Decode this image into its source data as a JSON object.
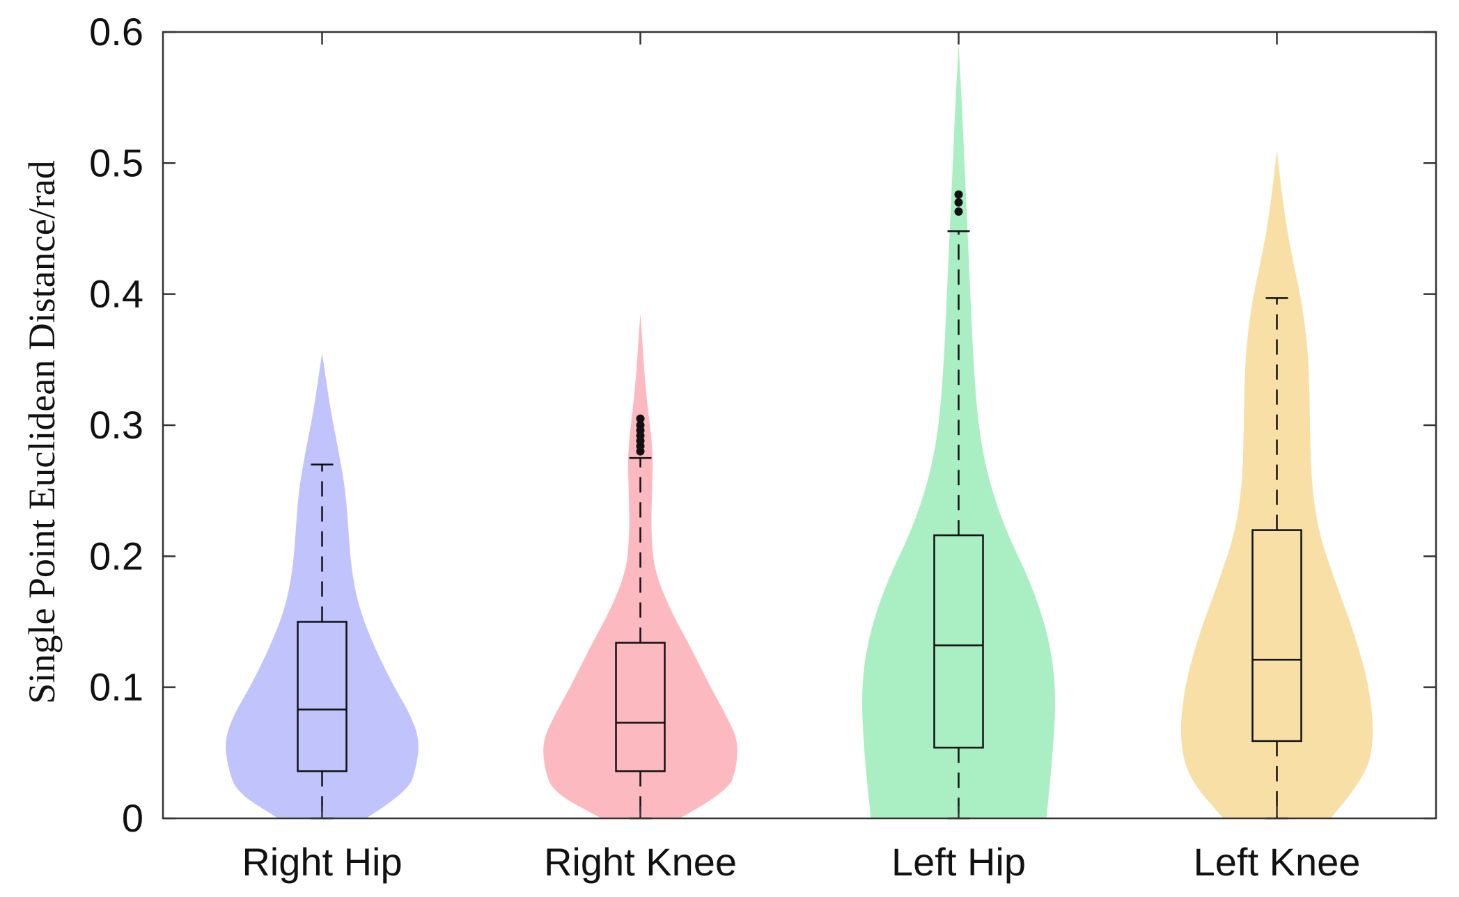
{
  "chart_data": {
    "type": "violin",
    "xlabel": "",
    "ylabel": "Single Point Euclidean Distance/rad",
    "ylim": [
      0,
      0.6
    ],
    "yticks": [
      "0",
      "0.1",
      "0.2",
      "0.3",
      "0.4",
      "0.5",
      "0.6"
    ],
    "grid": false,
    "legend": "none",
    "categories": [
      "Right Hip",
      "Right Knee",
      "Left Hip",
      "Left Knee"
    ],
    "series": [
      {
        "category": "Right Hip",
        "color": "#c0c3fc",
        "box": {
          "whisker_low": 0.0,
          "q1": 0.036,
          "median": 0.083,
          "q3": 0.15,
          "whisker_high": 0.27
        },
        "outliers": [],
        "density_range": [
          0.0,
          0.355
        ],
        "density_profile": [
          [
            0.0,
            0.45
          ],
          [
            0.02,
            0.88
          ],
          [
            0.04,
            0.97
          ],
          [
            0.06,
            1.0
          ],
          [
            0.08,
            0.9
          ],
          [
            0.1,
            0.74
          ],
          [
            0.13,
            0.54
          ],
          [
            0.16,
            0.38
          ],
          [
            0.19,
            0.3
          ],
          [
            0.22,
            0.27
          ],
          [
            0.25,
            0.24
          ],
          [
            0.28,
            0.17
          ],
          [
            0.31,
            0.09
          ],
          [
            0.335,
            0.04
          ],
          [
            0.355,
            0.0
          ]
        ]
      },
      {
        "category": "Right Knee",
        "color": "#fdb9c0",
        "box": {
          "whisker_low": 0.0,
          "q1": 0.036,
          "median": 0.073,
          "q3": 0.134,
          "whisker_high": 0.275
        },
        "outliers": [
          0.28,
          0.284,
          0.288,
          0.292,
          0.296,
          0.3,
          0.305
        ],
        "density_range": [
          0.0,
          0.385
        ],
        "density_profile": [
          [
            0.0,
            0.4
          ],
          [
            0.02,
            0.9
          ],
          [
            0.04,
            0.99
          ],
          [
            0.06,
            1.0
          ],
          [
            0.08,
            0.87
          ],
          [
            0.1,
            0.72
          ],
          [
            0.13,
            0.52
          ],
          [
            0.16,
            0.3
          ],
          [
            0.19,
            0.14
          ],
          [
            0.22,
            0.11
          ],
          [
            0.25,
            0.12
          ],
          [
            0.28,
            0.13
          ],
          [
            0.31,
            0.08
          ],
          [
            0.34,
            0.04
          ],
          [
            0.37,
            0.015
          ],
          [
            0.385,
            0.0
          ]
        ]
      },
      {
        "category": "Left Hip",
        "color": "#a9efc3",
        "box": {
          "whisker_low": 0.0,
          "q1": 0.054,
          "median": 0.132,
          "q3": 0.216,
          "whisker_high": 0.448
        },
        "outliers": [
          0.463,
          0.47,
          0.476
        ],
        "density_range": [
          0.0,
          0.59
        ],
        "density_profile": [
          [
            0.0,
            0.9
          ],
          [
            0.05,
            0.97
          ],
          [
            0.1,
            1.0
          ],
          [
            0.14,
            0.92
          ],
          [
            0.18,
            0.74
          ],
          [
            0.22,
            0.48
          ],
          [
            0.26,
            0.3
          ],
          [
            0.3,
            0.2
          ],
          [
            0.35,
            0.15
          ],
          [
            0.4,
            0.12
          ],
          [
            0.45,
            0.09
          ],
          [
            0.5,
            0.06
          ],
          [
            0.55,
            0.03
          ],
          [
            0.59,
            0.0
          ]
        ]
      },
      {
        "category": "Left Knee",
        "color": "#f7dfa6",
        "box": {
          "whisker_low": 0.0,
          "q1": 0.059,
          "median": 0.121,
          "q3": 0.22,
          "whisker_high": 0.397
        },
        "outliers": [],
        "density_range": [
          0.0,
          0.51
        ],
        "density_profile": [
          [
            0.0,
            0.55
          ],
          [
            0.03,
            0.9
          ],
          [
            0.06,
            1.0
          ],
          [
            0.1,
            0.95
          ],
          [
            0.14,
            0.8
          ],
          [
            0.18,
            0.6
          ],
          [
            0.22,
            0.42
          ],
          [
            0.26,
            0.35
          ],
          [
            0.3,
            0.34
          ],
          [
            0.34,
            0.33
          ],
          [
            0.37,
            0.3
          ],
          [
            0.4,
            0.24
          ],
          [
            0.43,
            0.15
          ],
          [
            0.46,
            0.08
          ],
          [
            0.49,
            0.03
          ],
          [
            0.51,
            0.0
          ]
        ]
      }
    ]
  }
}
